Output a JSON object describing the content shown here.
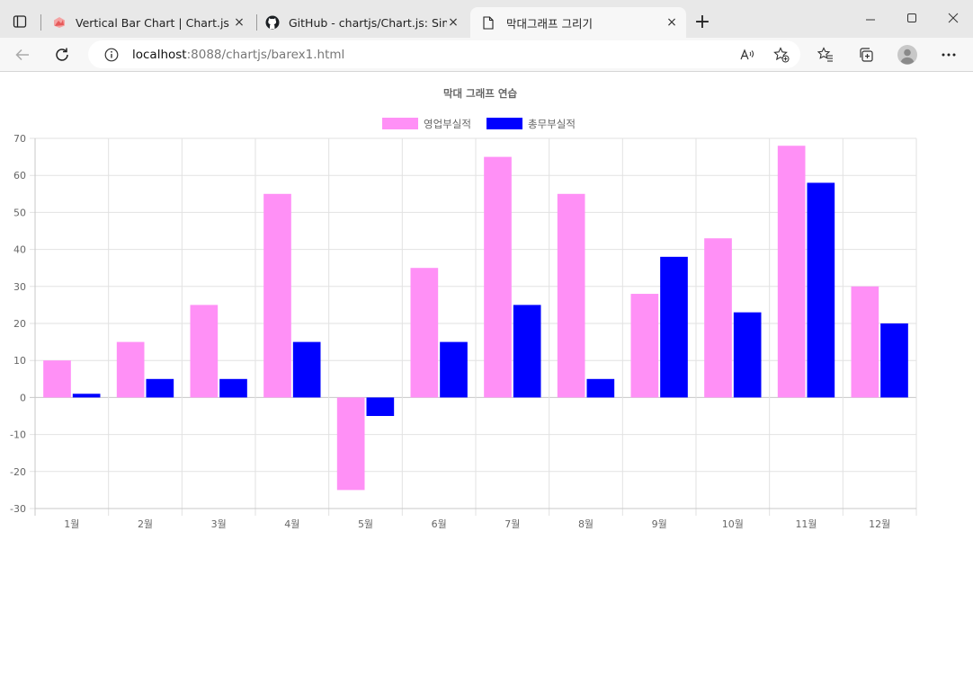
{
  "browser": {
    "tabs": [
      {
        "title": "Vertical Bar Chart | Chart.js",
        "icon": "chartjs-logo-icon"
      },
      {
        "title": "GitHub - chartjs/Chart.js: Simple",
        "icon": "github-icon"
      },
      {
        "title": "막대그래프 그리기",
        "icon": "page-icon"
      }
    ],
    "close_glyph": "×",
    "new_tab_glyph": "+",
    "url_host": "localhost",
    "url_rest": ":8088/chartjs/barex1.html"
  },
  "chart_data": {
    "type": "bar",
    "title": "막대 그래프 연습",
    "categories": [
      "1월",
      "2월",
      "3월",
      "4월",
      "5월",
      "6월",
      "7월",
      "8월",
      "9월",
      "10월",
      "11월",
      "12월"
    ],
    "series": [
      {
        "name": "영업부실적",
        "color": "#ff90f6",
        "values": [
          10,
          15,
          25,
          55,
          -25,
          35,
          65,
          55,
          28,
          43,
          68,
          30
        ]
      },
      {
        "name": "총무부실적",
        "color": "#0000ff",
        "values": [
          1,
          5,
          5,
          15,
          -5,
          15,
          25,
          5,
          38,
          23,
          58,
          20
        ]
      }
    ],
    "ylim": [
      -30,
      70
    ],
    "yticks": [
      70,
      60,
      50,
      40,
      30,
      20,
      10,
      0,
      -10,
      -20,
      -30
    ],
    "grid": true,
    "legend_position": "top"
  }
}
